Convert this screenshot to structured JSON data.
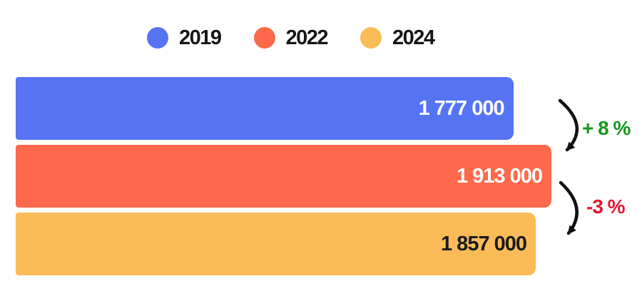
{
  "chart_data": {
    "type": "bar",
    "orientation": "horizontal",
    "title": "",
    "xlabel": "",
    "ylabel": "",
    "grid": false,
    "legend_position": "top",
    "categories": [
      "2019",
      "2022",
      "2024"
    ],
    "values": [
      1777000,
      1913000,
      1857000
    ],
    "xlim": [
      0,
      1913000
    ],
    "bars": [
      {
        "year": "2019",
        "value": 1777000,
        "label": "1 777 000",
        "color": "#5673f3",
        "label_color": "#ffffff"
      },
      {
        "year": "2022",
        "value": 1913000,
        "label": "1 913 000",
        "color": "#fc694b",
        "label_color": "#ffffff"
      },
      {
        "year": "2024",
        "value": 1857000,
        "label": "1 857 000",
        "color": "#fbbc58",
        "label_color": "#1b1b1b"
      }
    ],
    "annotations": [
      {
        "text": "+ 8 %",
        "color": "#12991a",
        "from": "2019",
        "to": "2022"
      },
      {
        "text": "-3 %",
        "color": "#e2182e",
        "from": "2022",
        "to": "2024"
      }
    ],
    "arrow_color": "#111111"
  }
}
